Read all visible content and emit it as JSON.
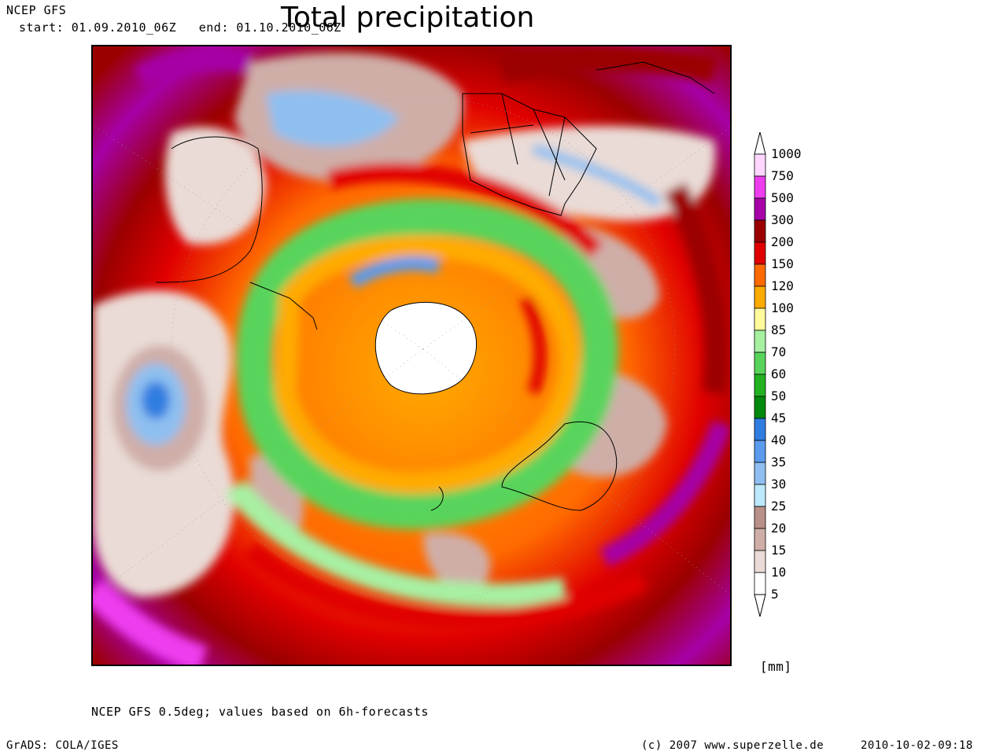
{
  "header": {
    "model": "NCEP GFS",
    "start_label": "start: 01.09.2010_06Z",
    "end_label": "end: 01.10.2010_06Z",
    "title": "Total precipitation"
  },
  "legend": {
    "unit": "[mm]",
    "levels": [
      "1000",
      "750",
      "500",
      "300",
      "200",
      "150",
      "120",
      "100",
      "85",
      "70",
      "60",
      "50",
      "45",
      "40",
      "35",
      "30",
      "25",
      "20",
      "15",
      "10",
      "5"
    ],
    "colors": [
      "#ffd6ff",
      "#ee3dee",
      "#a600a6",
      "#9b0000",
      "#e00000",
      "#ff6a00",
      "#ffab00",
      "#fffa9c",
      "#a7f0a2",
      "#58d45b",
      "#23b322",
      "#00890c",
      "#2f7de0",
      "#5a9bef",
      "#8ebff0",
      "#bce9fb",
      "#b89088",
      "#cfaea8",
      "#eadbd6",
      "#ffffff"
    ]
  },
  "footer": {
    "note": "NCEP GFS 0.5deg; values based on 6h-forecasts",
    "grads": "GrADS: COLA/IGES",
    "copyright": "(c) 2007 www.superzelle.de",
    "timestamp": "2010-10-02-09:18"
  }
}
